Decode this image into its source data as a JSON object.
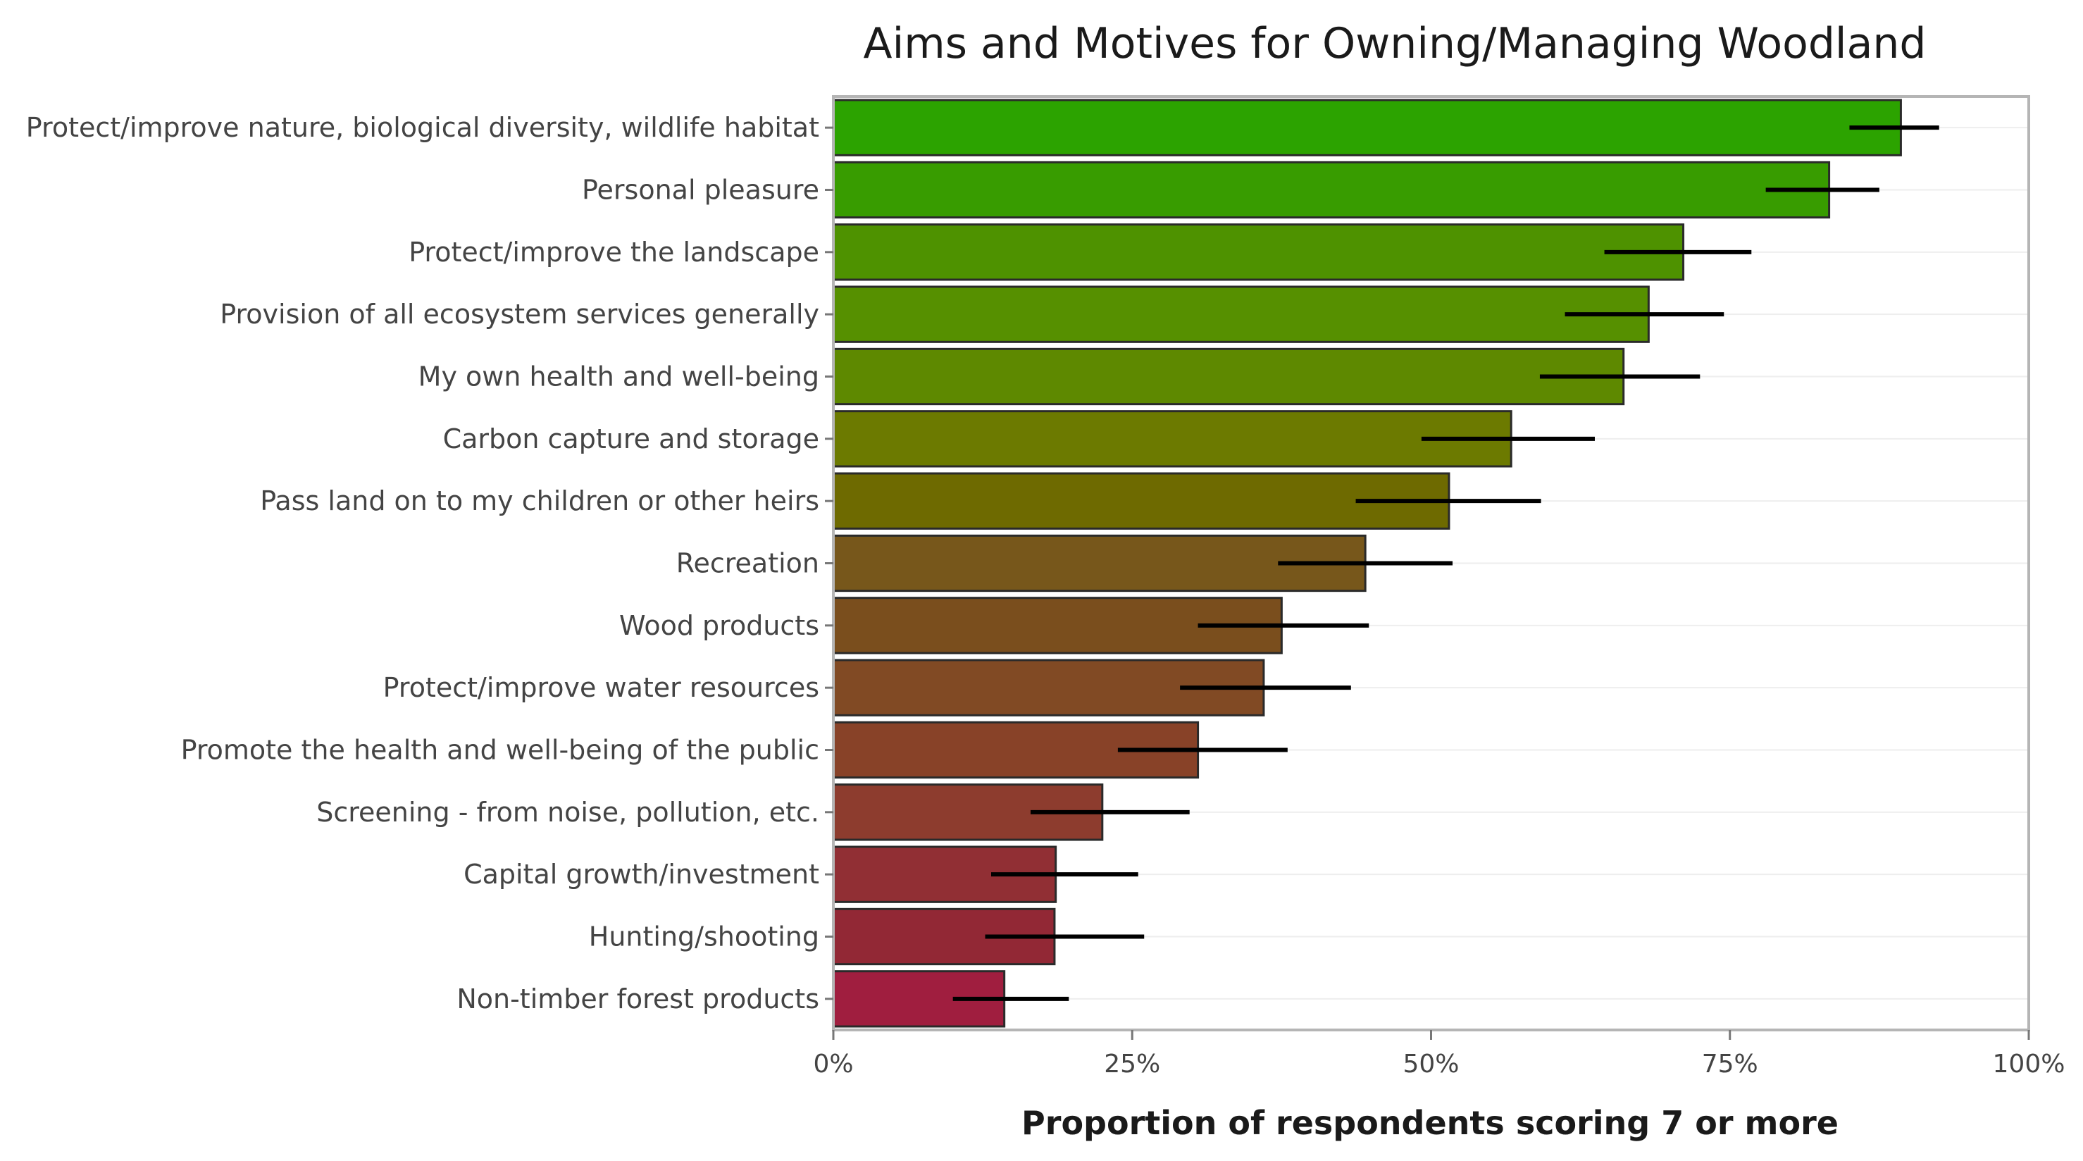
{
  "chart_data": {
    "type": "bar",
    "orientation": "horizontal",
    "title": "Aims and Motives for Owning/Managing Woodland",
    "xlabel": "Proportion of respondents scoring 7 or more",
    "ylabel": "",
    "xlim": [
      0,
      1
    ],
    "x_ticks": [
      "0%",
      "25%",
      "50%",
      "75%",
      "100%"
    ],
    "x_tick_values": [
      0,
      0.25,
      0.5,
      0.75,
      1.0
    ],
    "grid": true,
    "legend": "none",
    "categories": [
      "Protect/improve nature, biological diversity, wildlife habitat",
      "Personal pleasure",
      "Protect/improve the landscape",
      "Provision of all ecosystem services generally",
      "My own health and well-being",
      "Carbon capture and storage",
      "Pass land on to my children or other heirs",
      "Recreation",
      "Wood products",
      "Protect/improve water resources",
      "Promote the health and well-being of the public",
      "Screening - from noise, pollution, etc.",
      "Capital growth/investment",
      "Hunting/shooting",
      "Non-timber forest products"
    ],
    "values": [
      0.893,
      0.833,
      0.711,
      0.682,
      0.661,
      0.567,
      0.515,
      0.445,
      0.375,
      0.36,
      0.305,
      0.225,
      0.186,
      0.185,
      0.143
    ],
    "error_low": [
      0.85,
      0.78,
      0.645,
      0.612,
      0.591,
      0.492,
      0.437,
      0.372,
      0.305,
      0.29,
      0.238,
      0.165,
      0.132,
      0.127,
      0.1
    ],
    "error_high": [
      0.925,
      0.875,
      0.768,
      0.745,
      0.725,
      0.637,
      0.592,
      0.518,
      0.448,
      0.433,
      0.38,
      0.298,
      0.255,
      0.26,
      0.197
    ],
    "colors": [
      "#2ca300",
      "#389c00",
      "#4e9200",
      "#569000",
      "#5e8900",
      "#6c7a00",
      "#6e6a00",
      "#77571b",
      "#7a4e1d",
      "#814a24",
      "#884228",
      "#8d3c2e",
      "#912f34",
      "#922835",
      "#a01e3f"
    ]
  }
}
